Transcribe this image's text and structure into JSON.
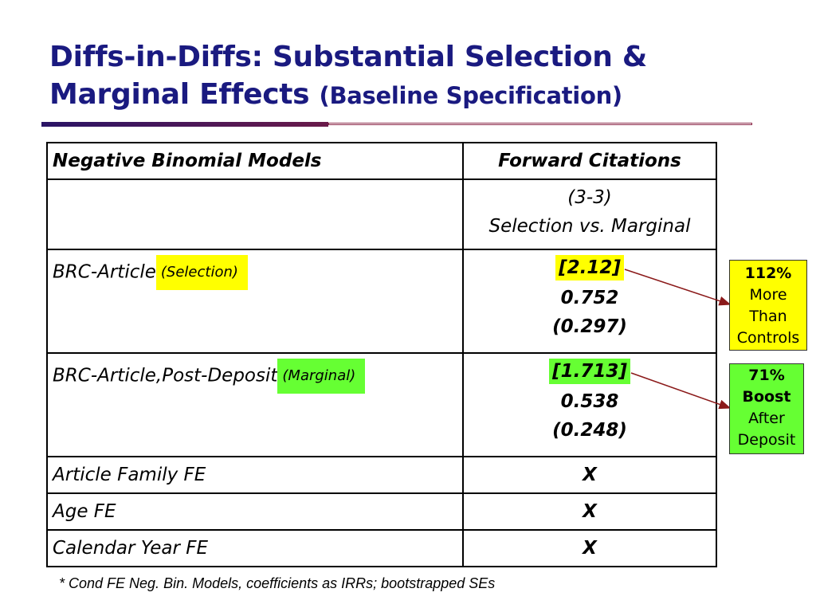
{
  "slide": {
    "title_main": "Diffs-in-Diffs: Substantial Selection & Marginal Effects",
    "title_sub": "(Baseline Specification)"
  },
  "table": {
    "header": {
      "col1": "Negative Binomial Models",
      "col2": "Forward Citations"
    },
    "spec": {
      "col2_line1": "(3-3)",
      "col2_line2": "Selection vs. Marginal"
    },
    "rows": [
      {
        "label": "BRC-Article",
        "tag": "(Selection)",
        "irr": "[2.12]",
        "coef": "0.752",
        "se": "(0.297)"
      },
      {
        "label": "BRC-Article,Post-Deposit",
        "tag": "(Marginal)",
        "irr": "[1.713]",
        "coef": "0.538",
        "se": "(0.248)"
      }
    ],
    "fe_rows": [
      {
        "label": "Article Family FE",
        "value": "X"
      },
      {
        "label": "Age FE",
        "value": "X"
      },
      {
        "label": "Calendar Year FE",
        "value": "X"
      }
    ]
  },
  "callouts": {
    "selection": {
      "line1": "112%",
      "line2": "More",
      "line3": "Than",
      "line4": "Controls",
      "color": "#ffff00"
    },
    "marginal": {
      "line1": "71%",
      "line2": "Boost",
      "line3": "After",
      "line4": "Deposit",
      "color": "#66ff33"
    }
  },
  "footnote": "* Cond FE Neg. Bin. Models, coefficients as IRRs; bootstrapped SEs",
  "colors": {
    "title": "#1a1a80",
    "arrow": "#8b1a1a"
  }
}
